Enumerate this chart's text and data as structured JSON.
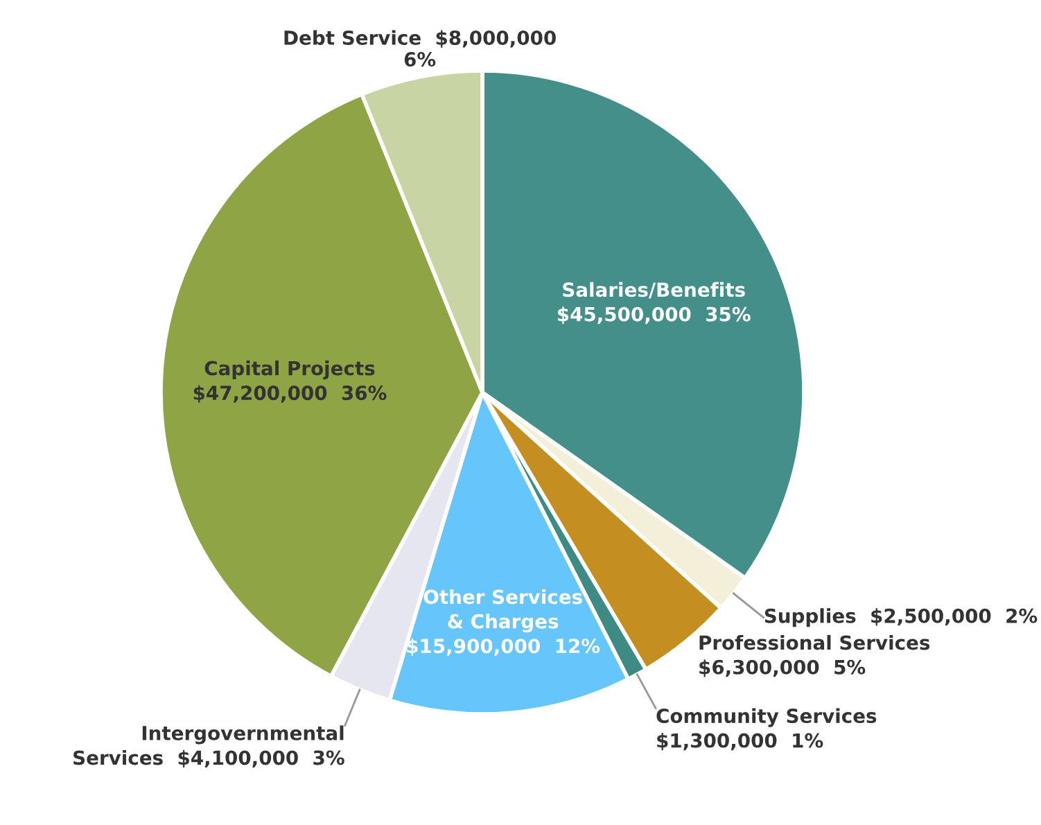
{
  "chart_data": {
    "type": "pie",
    "categories": [
      "Salaries/Benefits",
      "Supplies",
      "Professional Services",
      "Community Services",
      "Other Services & Charges",
      "Intergovernmental Services",
      "Capital Projects",
      "Debt Service"
    ],
    "values": [
      45500000,
      2500000,
      6300000,
      1300000,
      15900000,
      4100000,
      47200000,
      8000000
    ],
    "value_labels": [
      "$45,500,000  35%",
      "$2,500,000  2%",
      "$6,300,000  5%",
      "$1,300,000  1%",
      "$15,900,000  12%",
      "$4,100,000  3%",
      "$47,200,000  36%",
      "$8,000,000  6%"
    ],
    "colors": [
      "#458f8a",
      "#f3efd9",
      "#c58e20",
      "#3e8a85",
      "#66c6fb",
      "#e6e6f0",
      "#8fa444",
      "#c8d4a3"
    ],
    "legend": false
  }
}
